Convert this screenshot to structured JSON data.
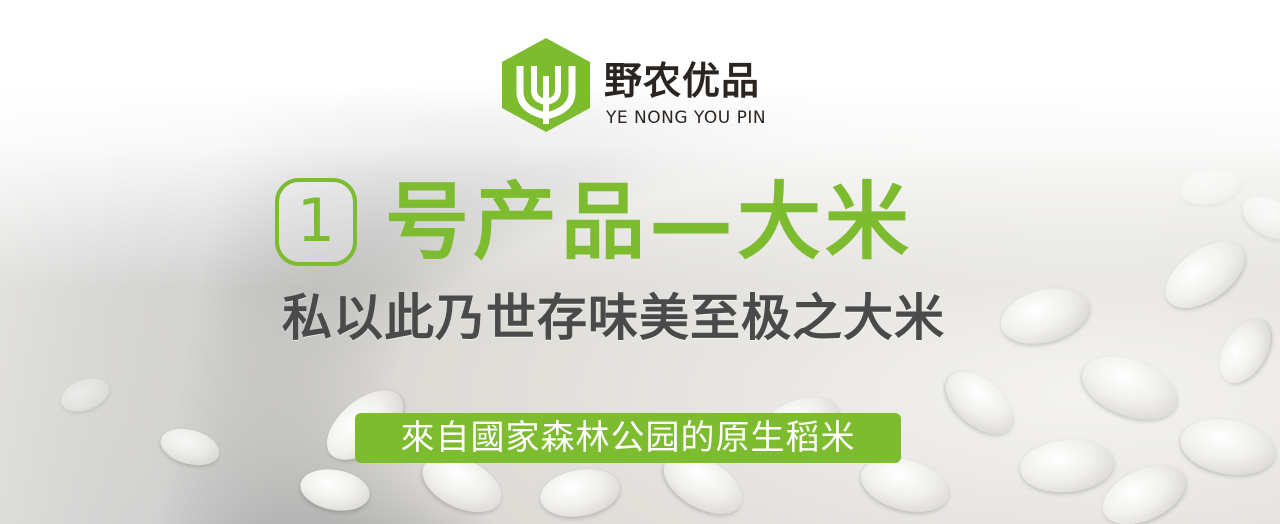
{
  "brand": {
    "name_cn": "野农优品",
    "name_en": "YE NONG YOU PIN",
    "logo_icon": "leaf-hexagon-logo-icon",
    "color": "#7dbb2f"
  },
  "headline": {
    "number": "1",
    "title": "号产品—大米"
  },
  "slogan": "私以此乃世存味美至极之大米",
  "tagline": "來自國家森林公园的原生稻米",
  "colors": {
    "accent": "#7dbb2f",
    "text_dark": "#2b2522",
    "slogan": "#4a4a4a"
  }
}
